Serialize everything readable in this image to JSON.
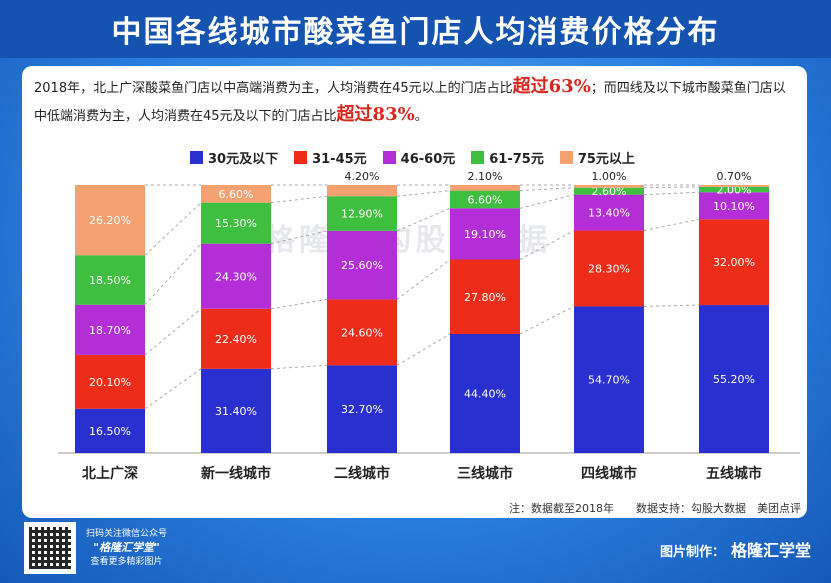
{
  "title": "中国各线城市酸菜鱼门店人均消费价格分布",
  "description": {
    "part1": "2018年，北上广深酸菜鱼门店以中高端消费为主，人均消费在45元以上的门店占比",
    "hl1": "超过63%",
    "part2": "；而四线及以下城市酸菜鱼门店以中低端消费为主，人均消费在45元及以下的门店占比",
    "hl2": "超过83%",
    "part3": "。"
  },
  "watermark": "格隆汇 勾股大数据",
  "note": "注：数据截至2018年　　数据支持：勾股大数据　美团点评",
  "footer": {
    "qr_line1": "扫码关注微信公众号",
    "qr_brand": "\"格隆汇学堂\"",
    "qr_line3": "查看更多精彩图片",
    "credit_label": "图片制作：",
    "credit_brand": "格隆汇学堂"
  },
  "colors": {
    "s1": "#2a2fcf",
    "s2": "#ee2c1a",
    "s3": "#b42ed8",
    "s4": "#3fbf3f",
    "s5": "#f4a071"
  },
  "chart_data": {
    "type": "bar",
    "stacked": true,
    "percent": true,
    "categories": [
      "北上广深",
      "新一线城市",
      "二线城市",
      "三线城市",
      "四线城市",
      "五线城市"
    ],
    "series": [
      {
        "name": "30元及以下",
        "values": [
          16.5,
          31.4,
          32.7,
          44.4,
          54.7,
          55.2
        ],
        "labels": [
          "16.50%",
          "31.40%",
          "32.70%",
          "44.40%",
          "54.70%",
          "55.20%"
        ]
      },
      {
        "name": "31-45元",
        "values": [
          20.1,
          22.4,
          24.6,
          27.8,
          28.3,
          32.0
        ],
        "labels": [
          "20.10%",
          "22.40%",
          "24.60%",
          "27.80%",
          "28.30%",
          "32.00%"
        ]
      },
      {
        "name": "46-60元",
        "values": [
          18.7,
          24.3,
          25.6,
          19.1,
          13.4,
          10.1
        ],
        "labels": [
          "18.70%",
          "24.30%",
          "25.60%",
          "19.10%",
          "13.40%",
          "10.10%"
        ]
      },
      {
        "name": "61-75元",
        "values": [
          18.5,
          15.3,
          12.9,
          6.6,
          2.6,
          2.0
        ],
        "labels": [
          "18.50%",
          "15.30%",
          "12.90%",
          "6.60%",
          "2.60%",
          "2.00%"
        ]
      },
      {
        "name": "75元以上",
        "values": [
          26.2,
          6.6,
          4.2,
          2.1,
          1.0,
          0.7
        ],
        "labels": [
          "26.20%",
          "6.60%",
          "4.20%",
          "2.10%",
          "1.00%",
          "0.70%"
        ]
      }
    ],
    "ylim": [
      0,
      100
    ],
    "legend": "top"
  }
}
